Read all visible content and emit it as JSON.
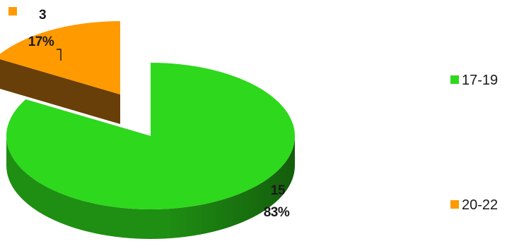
{
  "chart_data": {
    "type": "pie",
    "style": "3d-exploded",
    "legend_position": "right",
    "slices": [
      {
        "label": "17-19",
        "value": 15,
        "percent": "83%",
        "color": "#2ed81c",
        "side_color": "#1f8f13"
      },
      {
        "label": "20-22",
        "value": 3,
        "percent": "17%",
        "color": "#ff9a00",
        "side_color": "#7a4a0a"
      }
    ],
    "legend": [
      {
        "label": "17-19",
        "color": "#2ed81c"
      },
      {
        "label": "20-22",
        "color": "#ff9a00"
      }
    ]
  }
}
